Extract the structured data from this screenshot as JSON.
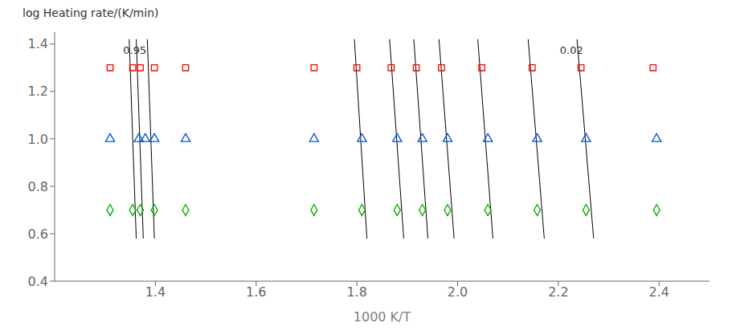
{
  "chart_data": {
    "type": "scatter",
    "xlabel": "1000 K/T",
    "ylabel": "log Heating rate/(K/min)",
    "xlim": [
      1.2,
      2.5
    ],
    "ylim": [
      0.4,
      1.45
    ],
    "xticks": [
      1.4,
      1.6,
      1.8,
      {
        "value": 2.0,
        "label": "2.0"
      },
      2.2,
      2.4
    ],
    "yticks": [
      0.4,
      0.6,
      0.8,
      {
        "value": 1.0,
        "label": "1.0"
      },
      1.2,
      1.4
    ],
    "grid": false,
    "series": [
      {
        "type": "line",
        "color": "#000000",
        "x": [
          1.348,
          1.362
        ],
        "y": [
          1.42,
          0.58
        ]
      },
      {
        "type": "line",
        "color": "#000000",
        "x": [
          1.362,
          1.376
        ],
        "y": [
          1.42,
          0.58
        ]
      },
      {
        "type": "line",
        "color": "#000000",
        "x": [
          1.384,
          1.398
        ],
        "y": [
          1.42,
          0.58
        ]
      },
      {
        "type": "line",
        "color": "#000000",
        "x": [
          1.795,
          1.82
        ],
        "y": [
          1.42,
          0.58
        ]
      },
      {
        "type": "line",
        "color": "#000000",
        "x": [
          1.865,
          1.893
        ],
        "y": [
          1.42,
          0.58
        ]
      },
      {
        "type": "line",
        "color": "#000000",
        "x": [
          1.913,
          1.941
        ],
        "y": [
          1.42,
          0.58
        ]
      },
      {
        "type": "line",
        "color": "#000000",
        "x": [
          1.963,
          1.993
        ],
        "y": [
          1.42,
          0.58
        ]
      },
      {
        "type": "line",
        "color": "#000000",
        "x": [
          2.04,
          2.07
        ],
        "y": [
          1.42,
          0.58
        ]
      },
      {
        "type": "line",
        "color": "#000000",
        "x": [
          2.14,
          2.172
        ],
        "y": [
          1.42,
          0.58
        ]
      },
      {
        "type": "line",
        "color": "#000000",
        "x": [
          2.237,
          2.27
        ],
        "y": [
          1.42,
          0.58
        ]
      },
      {
        "type": "scatter",
        "marker": "square",
        "color": "#ff0000",
        "x": [
          1.31,
          1.355,
          1.37,
          1.398,
          1.46,
          1.715,
          1.8,
          1.868,
          1.918,
          1.968,
          2.048,
          2.148,
          2.245,
          2.388
        ],
        "y": [
          1.3,
          1.3,
          1.3,
          1.3,
          1.3,
          1.3,
          1.3,
          1.3,
          1.3,
          1.3,
          1.3,
          1.3,
          1.3,
          1.3
        ]
      },
      {
        "type": "scatter",
        "marker": "triangle",
        "color": "#0055cc",
        "x": [
          1.31,
          1.367,
          1.38,
          1.398,
          1.46,
          1.715,
          1.81,
          1.88,
          1.93,
          1.98,
          2.06,
          2.158,
          2.255,
          2.395
        ],
        "y": [
          1.0,
          1.0,
          1.0,
          1.0,
          1.0,
          1.0,
          1.0,
          1.0,
          1.0,
          1.0,
          1.0,
          1.0,
          1.0,
          1.0
        ]
      },
      {
        "type": "scatter",
        "marker": "diamond",
        "color": "#00aa00",
        "x": [
          1.31,
          1.355,
          1.37,
          1.398,
          1.46,
          1.715,
          1.81,
          1.88,
          1.93,
          1.98,
          2.06,
          2.158,
          2.255,
          2.395
        ],
        "y": [
          0.7,
          0.7,
          0.7,
          0.7,
          0.7,
          0.7,
          0.7,
          0.7,
          0.7,
          0.7,
          0.7,
          0.7,
          0.7,
          0.7
        ]
      }
    ],
    "annotations": [
      {
        "text": "0.95",
        "x": 1.328,
        "y": 1.375
      },
      {
        "text": "0.02",
        "x": 2.195,
        "y": 1.375
      }
    ]
  }
}
